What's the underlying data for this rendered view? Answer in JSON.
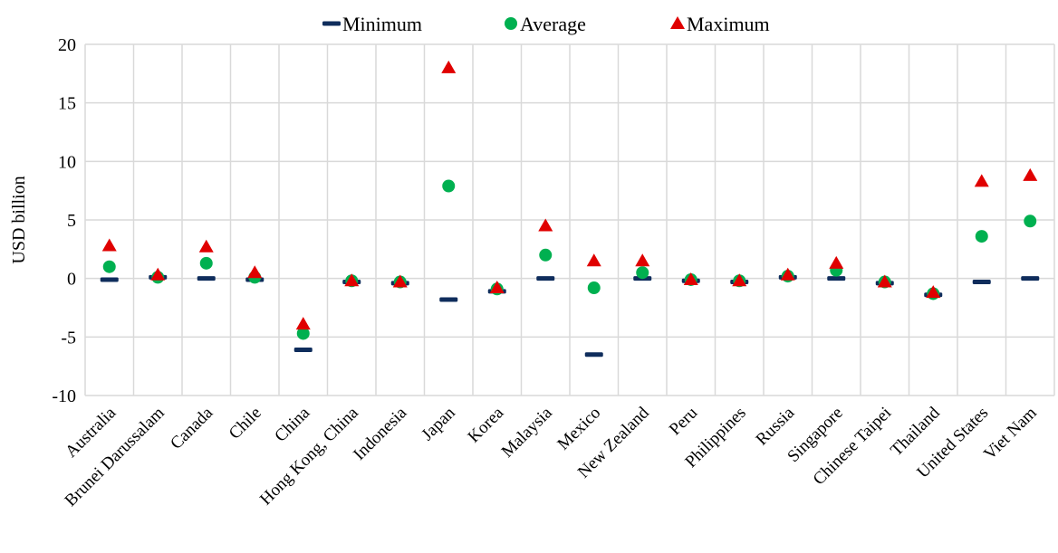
{
  "chart_data": {
    "type": "scatter",
    "title": "",
    "xlabel": "",
    "ylabel": "USD billion",
    "ylim": [
      -10,
      20
    ],
    "yticks": [
      -10,
      -5,
      0,
      5,
      10,
      15,
      20
    ],
    "grid": true,
    "legend_position": "top-center",
    "categories": [
      "Australia",
      "Brunei Darussalam",
      "Canada",
      "Chile",
      "China",
      "Hong Kong, China",
      "Indonesia",
      "Japan",
      "Korea",
      "Malaysia",
      "Mexico",
      "New Zealand",
      "Peru",
      "Philippines",
      "Russia",
      "Singapore",
      "Chinese Taipei",
      "Thailand",
      "United States",
      "Viet Nam"
    ],
    "series": [
      {
        "name": "Minimum",
        "marker": "dash",
        "color": "#0f2d5c",
        "values": [
          -0.1,
          0.1,
          0.0,
          -0.1,
          -6.1,
          -0.3,
          -0.4,
          -1.8,
          -1.1,
          0.0,
          -6.5,
          0.0,
          -0.2,
          -0.3,
          0.1,
          0.0,
          -0.4,
          -1.4,
          -0.3,
          0.0
        ]
      },
      {
        "name": "Average",
        "marker": "circle",
        "color": "#00b050",
        "values": [
          1.0,
          0.1,
          1.3,
          0.1,
          -4.7,
          -0.2,
          -0.3,
          7.9,
          -0.9,
          2.0,
          -0.8,
          0.5,
          -0.1,
          -0.2,
          0.2,
          0.7,
          -0.3,
          -1.3,
          3.6,
          4.9
        ]
      },
      {
        "name": "Maximum",
        "marker": "triangle",
        "color": "#e00000",
        "values": [
          2.8,
          0.3,
          2.7,
          0.5,
          -3.9,
          -0.2,
          -0.3,
          18.0,
          -0.8,
          4.5,
          1.5,
          1.5,
          -0.1,
          -0.2,
          0.3,
          1.3,
          -0.3,
          -1.2,
          8.3,
          8.8
        ]
      }
    ]
  }
}
